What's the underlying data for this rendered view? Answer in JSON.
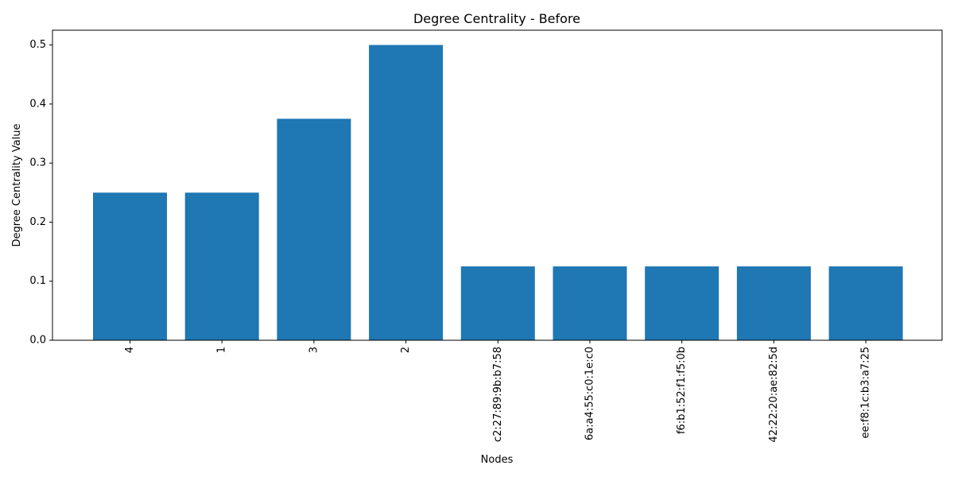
{
  "chart_data": {
    "type": "bar",
    "title": "Degree Centrality - Before",
    "xlabel": "Nodes",
    "ylabel": "Degree Centrality Value",
    "categories": [
      "4",
      "1",
      "3",
      "2",
      "c2:27:89:9b:b7:58",
      "6a:a4:55:c0:1e:c0",
      "f6:b1:52:f1:f5:0b",
      "42:22:20:ae:82:5d",
      "ee:f8:1c:b3:a7:25"
    ],
    "values": [
      0.25,
      0.25,
      0.375,
      0.5,
      0.125,
      0.125,
      0.125,
      0.125,
      0.125
    ],
    "ylim": [
      0,
      0.525
    ],
    "yticks": [
      "0.0",
      "0.1",
      "0.2",
      "0.3",
      "0.4",
      "0.5"
    ],
    "grid": false,
    "bar_color": "#1f77b4"
  }
}
